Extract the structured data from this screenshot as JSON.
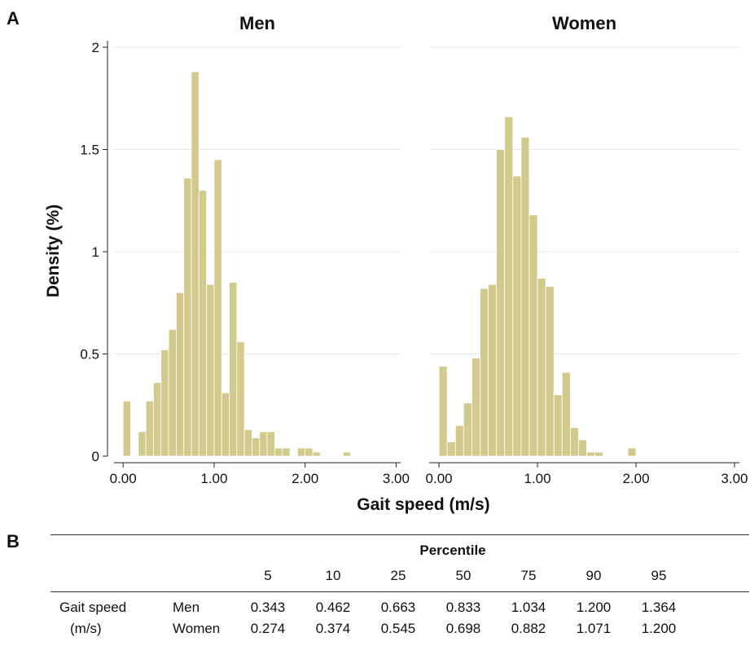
{
  "panel_a_label": "A",
  "panel_b_label": "B",
  "colors": {
    "bar_fill": "#d2c98c",
    "bar_stroke": "#ffffff",
    "grid": "#e8e8e8",
    "axis": "#222222"
  },
  "chart_data": [
    {
      "type": "bar",
      "title": "Men",
      "xlabel": "Gait speed (m/s)",
      "ylabel": "Density (%)",
      "xlim": [
        -0.1,
        3.05
      ],
      "ylim": [
        0,
        2.0
      ],
      "grid": true,
      "xticks": [
        "0.00",
        "1.00",
        "2.00",
        "3.00"
      ],
      "yticks": [
        "0",
        "0.5",
        "1",
        "1.5",
        "2"
      ],
      "bin_width": 0.0833,
      "bin_starts": [
        0.0,
        0.0833,
        0.1667,
        0.25,
        0.3333,
        0.4167,
        0.5,
        0.5833,
        0.6667,
        0.75,
        0.8333,
        0.9167,
        1.0,
        1.0833,
        1.1667,
        1.25,
        1.3333,
        1.4167,
        1.5,
        1.5833,
        1.6667,
        1.75,
        1.8333,
        1.9167,
        2.0,
        2.0833,
        2.1667,
        2.25,
        2.3333,
        2.4167
      ],
      "values": [
        0.27,
        0.0,
        0.12,
        0.27,
        0.36,
        0.52,
        0.62,
        0.8,
        1.36,
        1.88,
        1.3,
        0.84,
        1.45,
        0.31,
        0.85,
        0.56,
        0.13,
        0.09,
        0.12,
        0.12,
        0.04,
        0.04,
        0.0,
        0.04,
        0.04,
        0.02,
        0.0,
        0.0,
        0.0,
        0.02
      ]
    },
    {
      "type": "bar",
      "title": "Women",
      "xlabel": "Gait speed (m/s)",
      "ylabel": "Density (%)",
      "xlim": [
        -0.1,
        3.05
      ],
      "ylim": [
        0,
        2.0
      ],
      "grid": true,
      "xticks": [
        "0.00",
        "1.00",
        "2.00",
        "3.00"
      ],
      "yticks": [
        "0",
        "0.5",
        "1",
        "1.5",
        "2"
      ],
      "bin_width": 0.0833,
      "bin_starts": [
        0.0,
        0.0833,
        0.1667,
        0.25,
        0.3333,
        0.4167,
        0.5,
        0.5833,
        0.6667,
        0.75,
        0.8333,
        0.9167,
        1.0,
        1.0833,
        1.1667,
        1.25,
        1.3333,
        1.4167,
        1.5,
        1.5833,
        1.6667,
        1.75,
        1.8333,
        1.9167
      ],
      "values": [
        0.44,
        0.07,
        0.15,
        0.26,
        0.48,
        0.82,
        0.84,
        1.5,
        1.66,
        1.37,
        1.56,
        1.18,
        0.87,
        0.83,
        0.3,
        0.41,
        0.14,
        0.08,
        0.02,
        0.02,
        0.0,
        0.0,
        0.0,
        0.04
      ]
    }
  ],
  "table": {
    "header": "Percentile",
    "percentiles": [
      "5",
      "10",
      "25",
      "50",
      "75",
      "90",
      "95"
    ],
    "row_label_line1": "Gait speed",
    "row_label_line2": "(m/s)",
    "rows": [
      {
        "group": "Men",
        "values": [
          "0.343",
          "0.462",
          "0.663",
          "0.833",
          "1.034",
          "1.200",
          "1.364"
        ]
      },
      {
        "group": "Women",
        "values": [
          "0.274",
          "0.374",
          "0.545",
          "0.698",
          "0.882",
          "1.071",
          "1.200"
        ]
      }
    ]
  }
}
